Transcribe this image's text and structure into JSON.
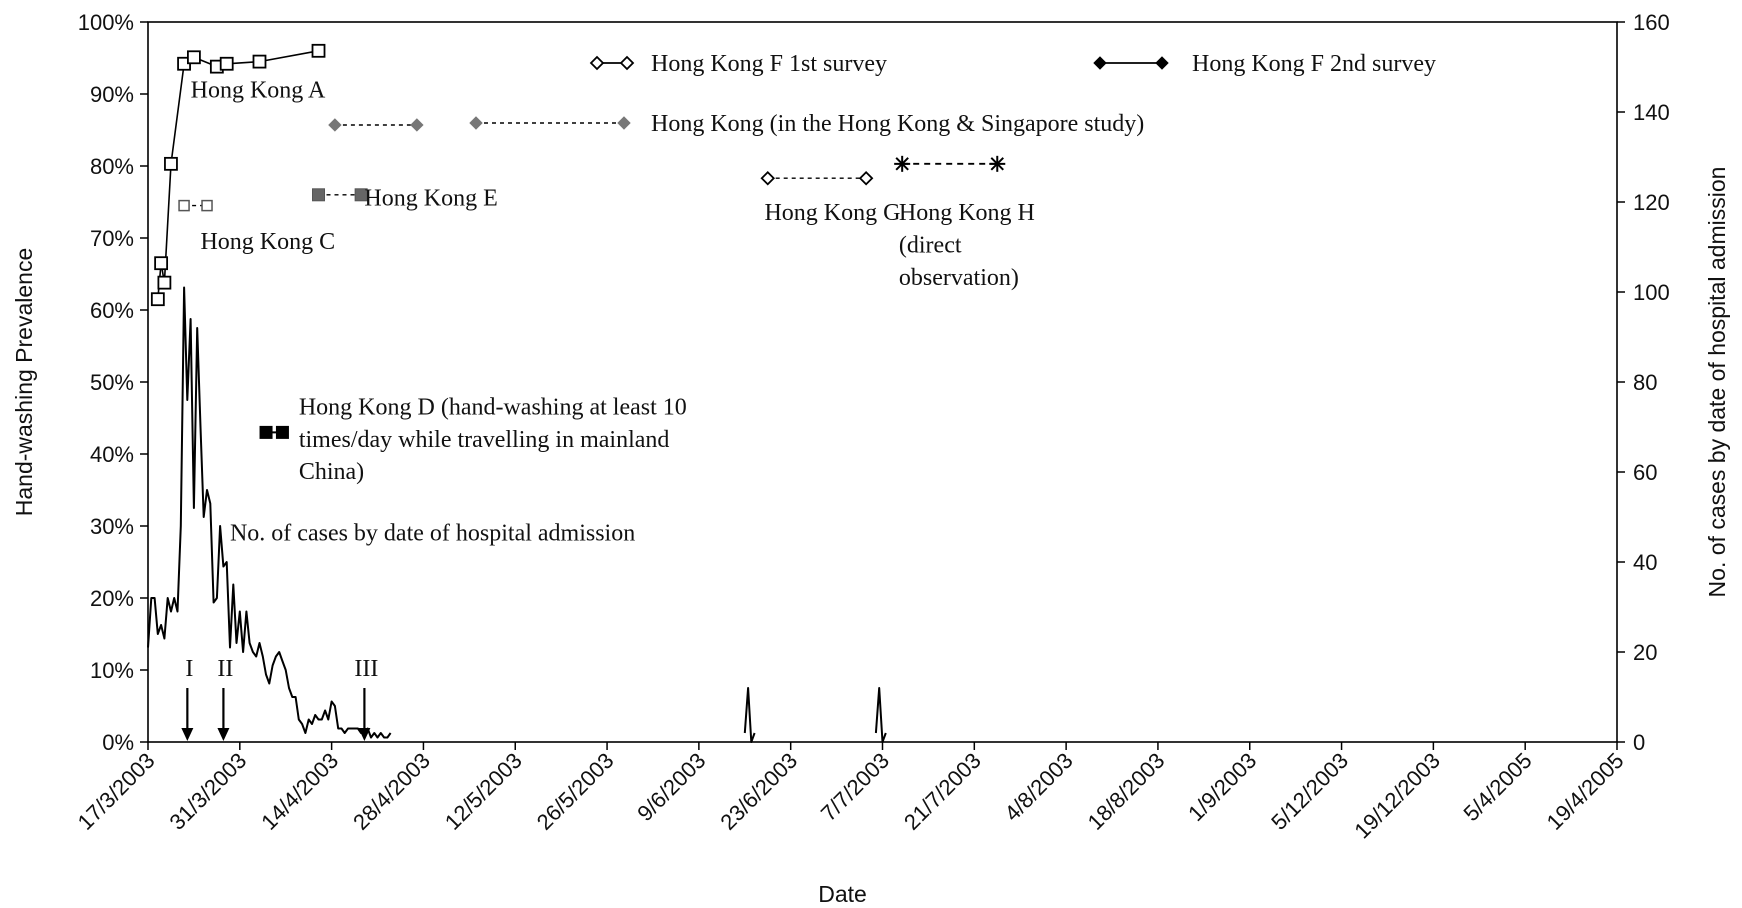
{
  "chart_data": {
    "type": "line",
    "xlabel": "Date",
    "ylabel_left": "Hand-washing Prevalence",
    "ylabel_right": "No. of cases by date of hospital admission",
    "left_axis": {
      "min": 0,
      "max": 100,
      "unit": "%",
      "ticks": [
        "0%",
        "10%",
        "20%",
        "30%",
        "40%",
        "50%",
        "60%",
        "70%",
        "80%",
        "90%",
        "100%"
      ]
    },
    "right_axis": {
      "min": 0,
      "max": 160,
      "ticks": [
        "0",
        "20",
        "40",
        "60",
        "80",
        "100",
        "120",
        "140",
        "160"
      ]
    },
    "x_categories": [
      "17/3/2003",
      "31/3/2003",
      "14/4/2003",
      "28/4/2003",
      "12/5/2003",
      "26/5/2003",
      "9/6/2003",
      "23/6/2003",
      "7/7/2003",
      "21/7/2003",
      "4/8/2003",
      "18/8/2003",
      "1/9/2003",
      "5/12/2003",
      "19/12/2003",
      "5/4/2005",
      "19/4/2005"
    ],
    "grid": false,
    "series": [
      {
        "name": "Hong Kong A",
        "style": "solid-square",
        "axis": "left",
        "x": [
          1.5,
          2.0,
          2.5,
          3.5,
          5.5,
          7.0,
          10.5,
          12.0,
          17.0,
          26.0
        ],
        "values": [
          61.5,
          66.5,
          63.8,
          80.3,
          94.2,
          95.1,
          93.8,
          94.2,
          94.5,
          96.0
        ]
      },
      {
        "name": "Hong Kong C",
        "style": "dashed-square",
        "axis": "left",
        "x": [
          5.5,
          9.0
        ],
        "values": [
          74.5,
          74.5
        ]
      },
      {
        "name": "Hong Kong D (hand-washing at least 10 times/day while travelling in mainland China)",
        "style": "solid-filled-square",
        "axis": "left",
        "x": [
          18.0,
          20.5
        ],
        "values": [
          43.0,
          43.0
        ]
      },
      {
        "name": "Hong Kong E",
        "style": "dashed-filled-square",
        "axis": "left",
        "x": [
          26.0,
          32.5
        ],
        "values": [
          76.0,
          76.0
        ]
      },
      {
        "name": "Hong Kong F 1st survey",
        "style": "solid-open-diamond",
        "axis": "left",
        "x": [],
        "values": []
      },
      {
        "name": "Hong Kong F 2nd survey",
        "style": "solid-filled-diamond",
        "axis": "left",
        "x": [],
        "values": []
      },
      {
        "name": "Hong Kong (in the Hong Kong & Singapore study)",
        "style": "dashed-gray-diamond",
        "axis": "left",
        "x": [
          28.5,
          41.0
        ],
        "values": [
          85.7,
          85.7
        ]
      },
      {
        "name": "Hong Kong G",
        "style": "dashed-open-diamond",
        "axis": "left",
        "x": [
          94.5,
          109.5
        ],
        "values": [
          78.3,
          78.3
        ]
      },
      {
        "name": "Hong Kong H (direct observation)",
        "style": "dashed-star",
        "axis": "left",
        "x": [
          115.0,
          129.5
        ],
        "values": [
          80.3,
          80.3
        ]
      },
      {
        "name": "No. of cases by date of hospital admission",
        "style": "line",
        "axis": "right",
        "x": [
          0,
          0.5,
          1,
          1.5,
          2,
          2.5,
          3,
          3.5,
          4,
          4.5,
          5,
          5.5,
          6,
          6.5,
          7,
          7.5,
          8,
          8.5,
          9,
          9.5,
          10,
          10.5,
          11,
          11.5,
          12,
          12.5,
          13,
          13.5,
          14,
          14.5,
          15,
          15.5,
          16,
          16.5,
          17,
          17.5,
          18,
          18.5,
          19,
          19.5,
          20,
          20.5,
          21,
          21.5,
          22,
          22.5,
          23,
          23.5,
          24,
          24.5,
          25,
          25.5,
          26,
          26.5,
          27,
          27.5,
          28,
          28.5,
          29,
          29.5,
          30,
          30.5,
          31,
          31.5,
          32,
          32.5,
          33,
          33.5,
          34,
          34.5,
          35,
          35.5,
          36,
          36.5,
          37
        ],
        "values": [
          21,
          32,
          32,
          24,
          26,
          23,
          32,
          29,
          32,
          29,
          48,
          101,
          76,
          94,
          52,
          92,
          70,
          50,
          56,
          53,
          31,
          32,
          48,
          39,
          40,
          21,
          35,
          22,
          29,
          20,
          29,
          22,
          20,
          19,
          22,
          19,
          15,
          13,
          17,
          19,
          20,
          18,
          16,
          12,
          10,
          10,
          5,
          4,
          2,
          5,
          4,
          6,
          5,
          5,
          7,
          5,
          9,
          8,
          3,
          3,
          2,
          3,
          3,
          3,
          3,
          2,
          2,
          3,
          1,
          2,
          1,
          2,
          1,
          1,
          2
        ]
      },
      {
        "name": "",
        "style": "line",
        "axis": "right",
        "x": [
          91.0,
          91.5,
          92.0,
          92.5
        ],
        "values": [
          2,
          12,
          0,
          2
        ]
      },
      {
        "name": "",
        "style": "line",
        "axis": "right",
        "x": [
          111.0,
          111.5,
          112.0,
          112.5
        ],
        "values": [
          2,
          12,
          0,
          2
        ]
      }
    ],
    "arrows": [
      {
        "label": "I",
        "x": 6.0
      },
      {
        "label": "II",
        "x": 11.5
      },
      {
        "label": "III",
        "x": 33.0
      }
    ],
    "annotations": [
      {
        "text": "Hong Kong A",
        "x": 6.5,
        "y": 89.5
      },
      {
        "text": "Hong Kong C",
        "x": 8.0,
        "y": 68.5
      },
      {
        "text": "Hong Kong E",
        "x": 33.0,
        "y": 74.5
      },
      {
        "text": "Hong Kong G",
        "x": 94.0,
        "y": 72.5
      },
      {
        "text": "Hong Kong H",
        "x": 114.5,
        "y": 72.5
      },
      {
        "text": "(direct",
        "x": 114.5,
        "y": 68.0
      },
      {
        "text": "observation)",
        "x": 114.5,
        "y": 63.5
      },
      {
        "text": "Hong Kong D (hand-washing at least 10",
        "x": 23.0,
        "y": 45.5
      },
      {
        "text": "times/day while travelling in mainland",
        "x": 23.0,
        "y": 41.0
      },
      {
        "text": "China)",
        "x": 23.0,
        "y": 36.5
      },
      {
        "text": "No. of cases by date of hospital admission",
        "x": 12.5,
        "y": 28.0
      }
    ],
    "legend_entries": [
      {
        "text": "Hong Kong F 1st survey",
        "marker": "open-diamond",
        "line": "solid",
        "row": 1,
        "col": 1
      },
      {
        "text": "Hong Kong F 2nd survey",
        "marker": "filled-diamond",
        "line": "solid",
        "row": 1,
        "col": 2
      },
      {
        "text": "Hong Kong (in the Hong Kong & Singapore study)",
        "marker": "gray-diamond",
        "line": "dashed",
        "row": 2,
        "col": 1
      }
    ]
  }
}
